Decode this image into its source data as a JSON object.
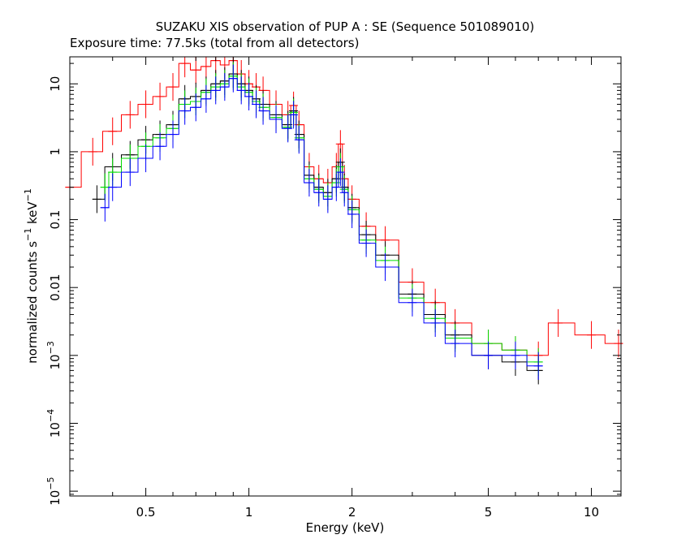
{
  "chart_data": {
    "type": "scatter",
    "title": "SUZAKU XIS observation of PUP A : SE (Sequence 501089010)",
    "subtitle": "Exposure time: 77.5ks (total from all detectors)",
    "xlabel": "Energy (keV)",
    "ylabel_prefix": "normalized counts s",
    "ylabel_sup1": "−1",
    "ylabel_mid": " keV",
    "ylabel_sup2": "−1",
    "x_scale": "log",
    "y_scale": "log",
    "xlim": [
      0.3,
      12.2
    ],
    "ylim": [
      8.5e-06,
      25
    ],
    "x_ticks": [
      {
        "value": 0.5,
        "label": "0.5"
      },
      {
        "value": 1,
        "label": "1"
      },
      {
        "value": 2,
        "label": "2"
      },
      {
        "value": 5,
        "label": "5"
      },
      {
        "value": 10,
        "label": "10"
      }
    ],
    "y_ticks": [
      {
        "value": 10,
        "base": "10",
        "exp": ""
      },
      {
        "value": 1,
        "base": "1",
        "exp": ""
      },
      {
        "value": 0.1,
        "base": "0.1",
        "exp": ""
      },
      {
        "value": 0.01,
        "base": "0.01",
        "exp": ""
      },
      {
        "value": 0.001,
        "base": "10",
        "exp": "−3"
      },
      {
        "value": 0.0001,
        "base": "10",
        "exp": "−4"
      },
      {
        "value": 1e-05,
        "base": "10",
        "exp": "−5"
      }
    ],
    "series": [
      {
        "color": "#ff0000",
        "x": [
          0.3,
          0.35,
          0.4,
          0.45,
          0.5,
          0.55,
          0.6,
          0.65,
          0.7,
          0.75,
          0.8,
          0.85,
          0.9,
          0.95,
          1.0,
          1.05,
          1.1,
          1.2,
          1.3,
          1.35,
          1.4,
          1.5,
          1.6,
          1.7,
          1.8,
          1.85,
          1.9,
          2.0,
          2.2,
          2.5,
          3.0,
          3.5,
          4.0,
          5.0,
          6.0,
          7.0,
          8.0,
          10.0,
          12.0
        ],
        "y": [
          0.3,
          1.0,
          2.0,
          3.5,
          5.0,
          6.5,
          9.0,
          20.0,
          16.0,
          18.0,
          22.0,
          19.0,
          22.0,
          14.0,
          10.0,
          9.0,
          8.0,
          5.0,
          3.5,
          4.8,
          2.5,
          0.6,
          0.4,
          0.35,
          0.6,
          1.3,
          0.4,
          0.2,
          0.08,
          0.05,
          0.012,
          0.006,
          0.003,
          0.0015,
          0.0012,
          0.001,
          0.003,
          0.002,
          0.0015
        ]
      },
      {
        "color": "#000000",
        "x": [
          0.36,
          0.4,
          0.45,
          0.5,
          0.55,
          0.6,
          0.65,
          0.7,
          0.75,
          0.8,
          0.85,
          0.9,
          0.95,
          1.0,
          1.05,
          1.1,
          1.2,
          1.3,
          1.35,
          1.4,
          1.5,
          1.6,
          1.7,
          1.8,
          1.85,
          1.9,
          2.0,
          2.2,
          2.5,
          3.0,
          3.5,
          4.0,
          5.0,
          6.0,
          7.0
        ],
        "y": [
          0.2,
          0.6,
          0.9,
          1.5,
          1.8,
          2.5,
          6.0,
          6.5,
          8.0,
          10.0,
          11.0,
          14.0,
          10.0,
          8.0,
          6.0,
          5.0,
          3.5,
          2.5,
          4.0,
          1.8,
          0.45,
          0.3,
          0.25,
          0.4,
          0.7,
          0.3,
          0.15,
          0.06,
          0.03,
          0.008,
          0.004,
          0.002,
          0.001,
          0.0008,
          0.0006
        ]
      },
      {
        "color": "#00dd00",
        "x": [
          0.38,
          0.4,
          0.45,
          0.5,
          0.55,
          0.6,
          0.65,
          0.7,
          0.75,
          0.8,
          0.85,
          0.9,
          0.95,
          1.0,
          1.05,
          1.1,
          1.2,
          1.3,
          1.35,
          1.4,
          1.5,
          1.6,
          1.7,
          1.8,
          1.85,
          1.9,
          2.0,
          2.2,
          2.5,
          3.0,
          3.5,
          4.0,
          5.0,
          6.0,
          7.0
        ],
        "y": [
          0.3,
          0.5,
          0.8,
          1.2,
          1.6,
          2.2,
          5.0,
          5.5,
          7.5,
          9.0,
          10.0,
          13.0,
          9.0,
          7.5,
          5.5,
          4.5,
          3.2,
          2.3,
          3.8,
          1.6,
          0.4,
          0.28,
          0.22,
          0.35,
          0.6,
          0.28,
          0.14,
          0.05,
          0.025,
          0.007,
          0.0035,
          0.0018,
          0.0015,
          0.0012,
          0.0008
        ]
      },
      {
        "color": "#0000ff",
        "x": [
          0.38,
          0.4,
          0.45,
          0.5,
          0.55,
          0.6,
          0.65,
          0.7,
          0.75,
          0.8,
          0.85,
          0.9,
          0.95,
          1.0,
          1.05,
          1.1,
          1.2,
          1.3,
          1.35,
          1.4,
          1.5,
          1.6,
          1.7,
          1.8,
          1.85,
          1.9,
          2.0,
          2.2,
          2.5,
          3.0,
          3.5,
          4.0,
          5.0,
          6.0,
          7.0
        ],
        "y": [
          0.15,
          0.3,
          0.5,
          0.8,
          1.2,
          1.8,
          4.0,
          4.5,
          6.0,
          8.0,
          9.0,
          12.0,
          8.0,
          6.5,
          5.0,
          4.0,
          3.0,
          2.2,
          3.5,
          1.5,
          0.35,
          0.25,
          0.2,
          0.3,
          0.5,
          0.25,
          0.12,
          0.045,
          0.02,
          0.006,
          0.003,
          0.0015,
          0.001,
          0.001,
          0.0007
        ]
      }
    ]
  }
}
